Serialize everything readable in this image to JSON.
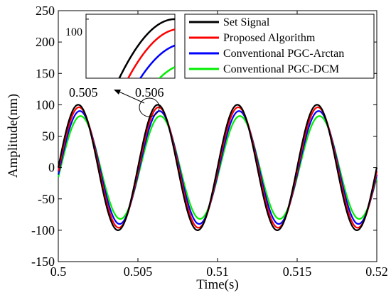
{
  "chart_data": {
    "type": "line",
    "xlabel": "Time(s)",
    "ylabel": "Amplitude(nm)",
    "xlim": [
      0.5,
      0.52
    ],
    "ylim": [
      -150,
      250
    ],
    "xticks": [
      0.5,
      0.505,
      0.51,
      0.515,
      0.52
    ],
    "xtick_labels": [
      "0.5",
      "0.505",
      "0.51",
      "0.515",
      "0.52"
    ],
    "yticks": [
      -150,
      -100,
      -50,
      0,
      50,
      100,
      150,
      200,
      250
    ],
    "ytick_labels": [
      "-150",
      "-100",
      "-50",
      "0",
      "50",
      "100",
      "150",
      "200",
      "250"
    ],
    "grid": false,
    "legend_position": "top-right",
    "signal": {
      "frequency_hz": 200
    },
    "series": [
      {
        "name": "Set Signal",
        "color": "#000000",
        "amplitude": 100,
        "phase_shift_s": 0.0
      },
      {
        "name": "Proposed Algorithm",
        "color": "#ff0000",
        "amplitude": 96,
        "phase_shift_s": 5e-05
      },
      {
        "name": "Conventional PGC-Arctan",
        "color": "#0000ff",
        "amplitude": 90,
        "phase_shift_s": 0.0001
      },
      {
        "name": "Conventional PGC-DCM",
        "color": "#00ee00",
        "amplitude": 82,
        "phase_shift_s": 0.00015
      }
    ],
    "inset": {
      "tick_label": "100",
      "callout_labels": [
        "0.505",
        "0.506"
      ],
      "zoom_x": [
        0.50535,
        0.50625
      ],
      "zoom_y": [
        76,
        102
      ]
    }
  }
}
